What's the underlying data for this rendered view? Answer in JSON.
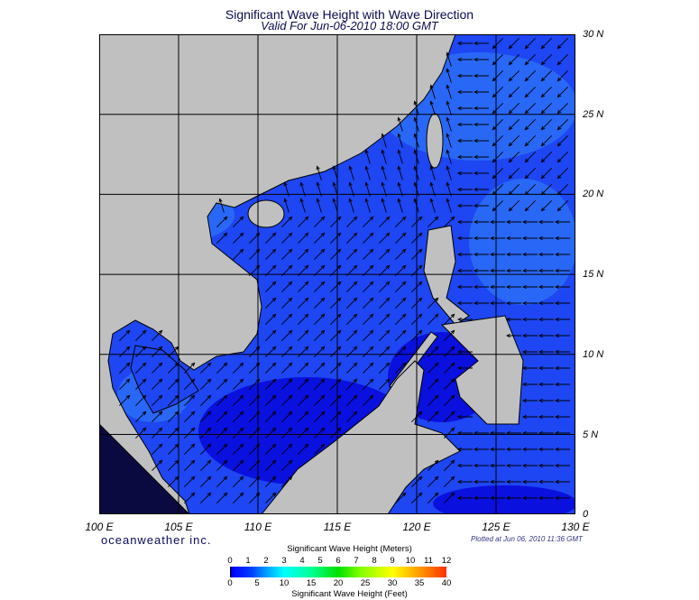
{
  "title": "Significant Wave Height with Wave Direction",
  "subtitle": "Valid For Jun-06-2010 18:00 GMT",
  "brand": "oceanweather inc.",
  "plotted": "Plotted at Jun 06, 2010 11:36 GMT",
  "map": {
    "lon_range": [
      100,
      130
    ],
    "lat_range": [
      0,
      30
    ],
    "lon_labels": [
      "100 E",
      "105 E",
      "110 E",
      "115 E",
      "120 E",
      "125 E",
      "130 E"
    ],
    "lat_labels": [
      "30 N",
      "25 N",
      "20 N",
      "15 N",
      "10 N",
      "5 N",
      "0"
    ],
    "colors": {
      "land": "#c0c0c0",
      "sea": "#1e46f2",
      "sea_light": "#2a6cf6",
      "sea_deep": "#0a10de",
      "arrow": "#000000"
    }
  },
  "colorbar": {
    "title_m": "Significant Wave Height (Meters)",
    "title_ft": "Significant Wave Height (Feet)",
    "meters": [
      "0",
      "1",
      "2",
      "3",
      "4",
      "5",
      "6",
      "7",
      "8",
      "9",
      "10",
      "11",
      "12"
    ],
    "feet": [
      "0",
      "5",
      "10",
      "15",
      "20",
      "25",
      "30",
      "35",
      "40"
    ]
  }
}
